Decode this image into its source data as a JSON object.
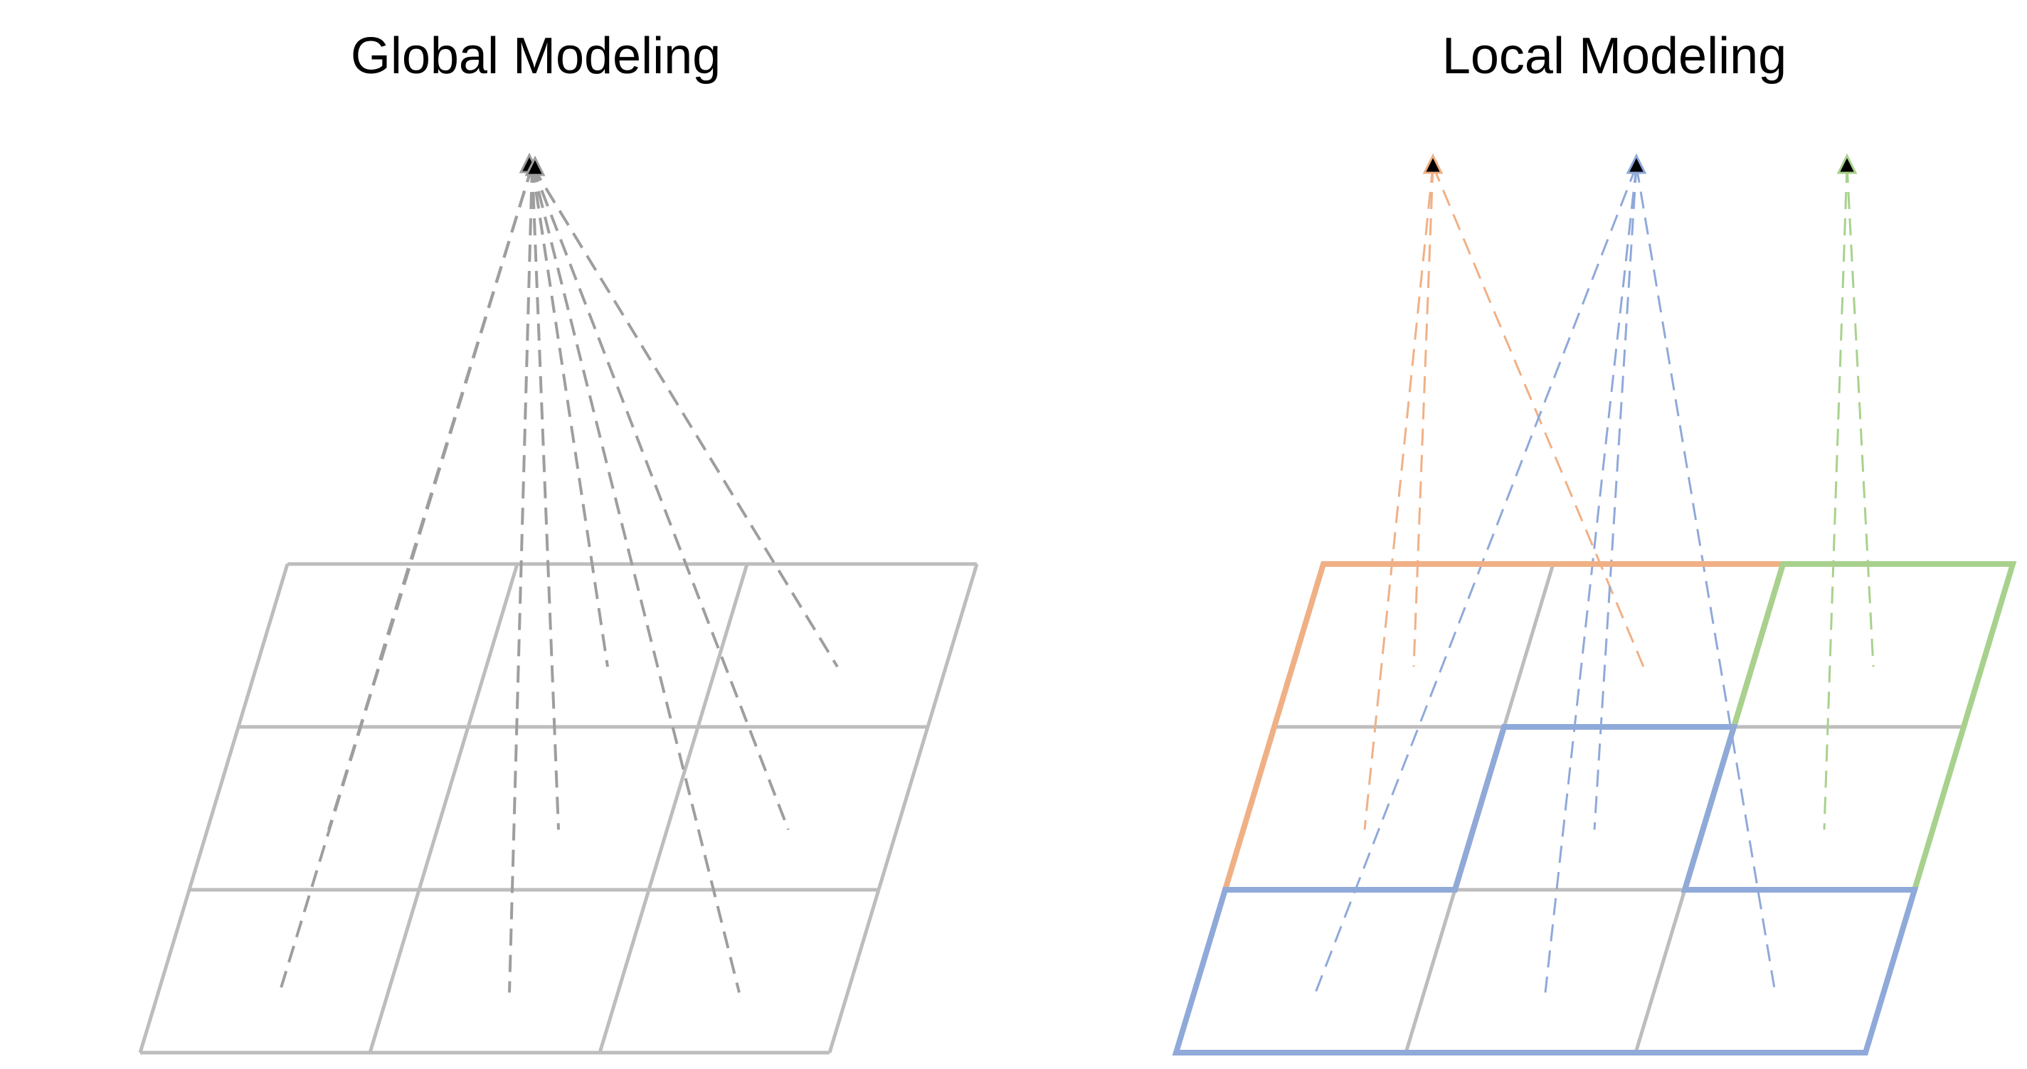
{
  "panels": {
    "global": {
      "title": "Global Modeling",
      "grid": "3x3",
      "query": "single point attending to all 9 grid cells"
    },
    "local": {
      "title": "Local Modeling",
      "grid": "3x3",
      "windows": [
        {
          "group": "orange",
          "query_count": 1,
          "attends_to": "top-left 2x2 cells"
        },
        {
          "group": "blue",
          "query_count": 1,
          "attends_to": "bottom-middle 2x2 cells"
        },
        {
          "group": "green",
          "query_count": 1,
          "attends_to": "top-right and middle-right cells"
        }
      ]
    }
  },
  "colors": {
    "grid": "#bdbdbd",
    "global_lines": "#9e9e9e",
    "orange": "#f0b085",
    "blue": "#8fa9d9",
    "green": "#a8d18d",
    "query_marker": "#000000"
  }
}
